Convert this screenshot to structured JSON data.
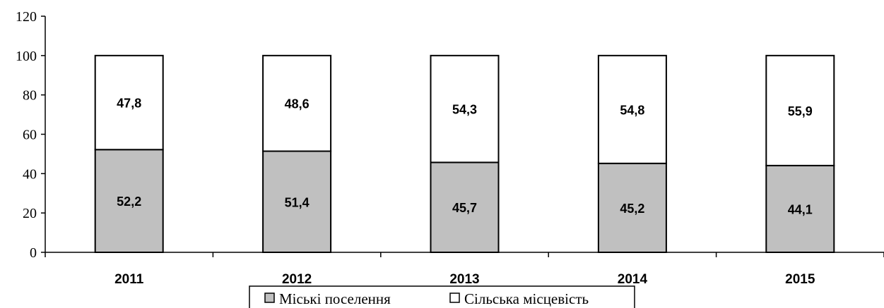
{
  "chart_data": {
    "type": "bar",
    "stacked": true,
    "categories": [
      "2011",
      "2012",
      "2013",
      "2014",
      "2015"
    ],
    "series": [
      {
        "name": "Міські поселення",
        "values": [
          52.2,
          51.4,
          45.7,
          45.2,
          44.1
        ],
        "labels": [
          "52,2",
          "51,4",
          "45,7",
          "45,2",
          "44,1"
        ],
        "color": "#c0c0c0"
      },
      {
        "name": "Сільська місцевість",
        "values": [
          47.8,
          48.6,
          54.3,
          54.8,
          55.9
        ],
        "labels": [
          "47,8",
          "48,6",
          "54,3",
          "54,8",
          "55,9"
        ],
        "color": "#ffffff"
      }
    ],
    "yticks": [
      "0",
      "20",
      "40",
      "60",
      "80",
      "100",
      "120"
    ],
    "ylim": [
      0,
      120
    ],
    "grid": false,
    "legend_position": "bottom-center"
  }
}
